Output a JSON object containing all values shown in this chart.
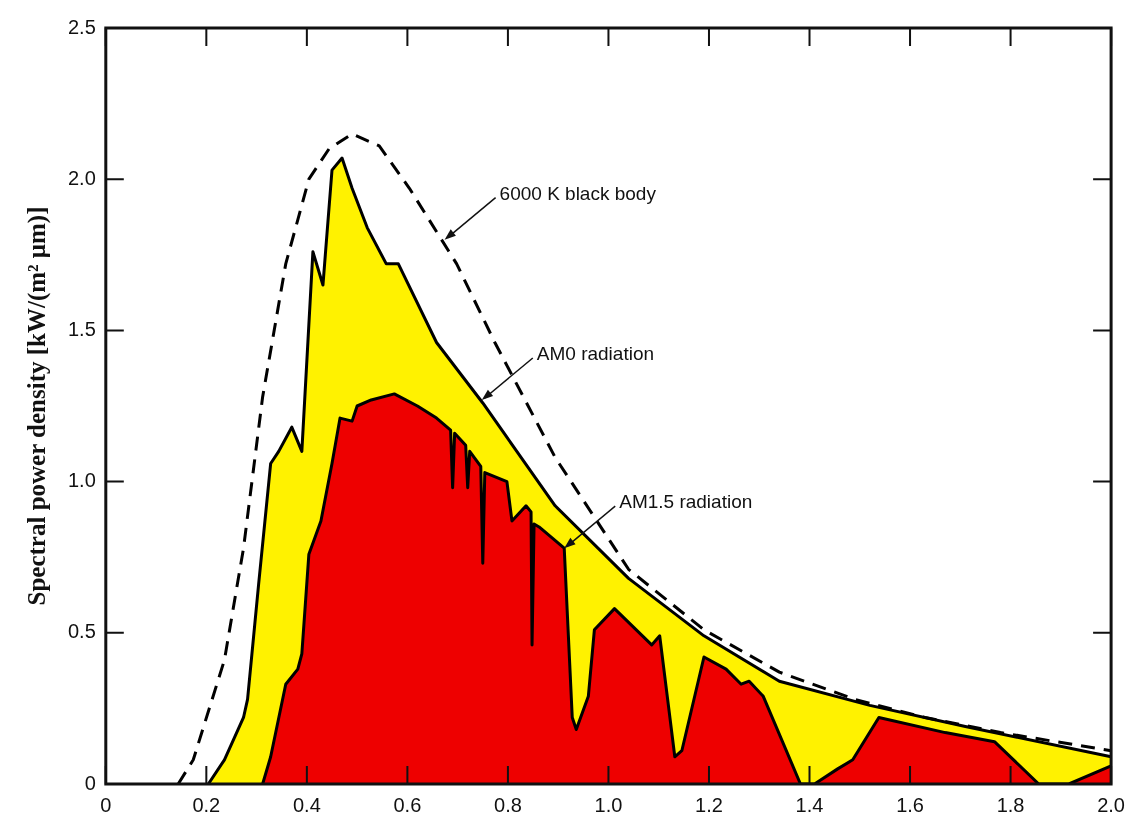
{
  "chart_data": {
    "type": "area",
    "ylabel": "Spectral power density [kW/(m² μm)]",
    "xlim": [
      0,
      2.0
    ],
    "ylim": [
      0,
      2.5
    ],
    "xticks": [
      0,
      0.2,
      0.4,
      0.6,
      0.8,
      {
        "value": 1,
        "label": "1.0"
      },
      1.2,
      1.4,
      1.6,
      1.8,
      {
        "value": 2,
        "label": "2.0"
      }
    ],
    "yticks": [
      0,
      0.5,
      {
        "value": 1,
        "label": "1.0"
      },
      1.5,
      {
        "value": 2,
        "label": "2.0"
      },
      2.5
    ],
    "marker": "none",
    "series": [
      {
        "color": "#fff200",
        "x": [
          0.204,
          0.236,
          0.274,
          0.282,
          0.304,
          0.328,
          0.344,
          0.37,
          0.39,
          0.412,
          0.432,
          0.45,
          0.47,
          0.49,
          0.52,
          0.558,
          0.582,
          0.658,
          0.75,
          0.894,
          1.04,
          1.19,
          1.34,
          1.52,
          1.71,
          2.0
        ],
        "values": [
          0,
          0.08,
          0.22,
          0.28,
          0.66,
          1.06,
          1.1,
          1.18,
          1.1,
          1.76,
          1.65,
          2.03,
          2.07,
          1.97,
          1.84,
          1.72,
          1.72,
          1.46,
          1.26,
          0.92,
          0.68,
          0.49,
          0.34,
          0.26,
          0.19,
          0.09
        ]
      },
      {
        "color": "#ee0000",
        "x": [
          0.312,
          0.328,
          0.358,
          0.382,
          0.39,
          0.404,
          0.428,
          0.45,
          0.466,
          0.49,
          0.5,
          0.528,
          0.574,
          0.62,
          0.658,
          0.686,
          0.69,
          0.694,
          0.716,
          0.72,
          0.724,
          0.746,
          0.75,
          0.754,
          0.798,
          0.808,
          0.836,
          0.846,
          0.848,
          0.852,
          0.862,
          0.912,
          0.928,
          0.936,
          0.96,
          0.972,
          1.012,
          1.086,
          1.102,
          1.132,
          1.146,
          1.19,
          1.234,
          1.264,
          1.28,
          1.308,
          1.382,
          1.41,
          1.456,
          1.486,
          1.538,
          1.67,
          1.768,
          1.856,
          1.916,
          2.0
        ],
        "values": [
          0,
          0.09,
          0.33,
          0.38,
          0.43,
          0.76,
          0.87,
          1.06,
          1.21,
          1.2,
          1.25,
          1.27,
          1.29,
          1.25,
          1.21,
          1.17,
          0.98,
          1.16,
          1.12,
          0.98,
          1.1,
          1.05,
          0.73,
          1.03,
          1.0,
          0.87,
          0.92,
          0.9,
          0.46,
          0.86,
          0.85,
          0.78,
          0.22,
          0.18,
          0.29,
          0.51,
          0.58,
          0.46,
          0.49,
          0.09,
          0.11,
          0.42,
          0.38,
          0.33,
          0.34,
          0.29,
          0,
          0,
          0.05,
          0.08,
          0.22,
          0.17,
          0.14,
          0,
          0,
          0.06
        ]
      },
      {
        "type": "line",
        "color": "#000000",
        "line_style": "dashed",
        "x": [
          0.144,
          0.174,
          0.236,
          0.274,
          0.312,
          0.358,
          0.404,
          0.444,
          0.49,
          0.544,
          0.604,
          0.698,
          0.774,
          0.894,
          1.04,
          1.19,
          1.34,
          1.49,
          1.63,
          1.78,
          2.0
        ],
        "values": [
          0,
          0.08,
          0.41,
          0.78,
          1.28,
          1.72,
          2.0,
          2.1,
          2.15,
          2.11,
          1.97,
          1.72,
          1.46,
          1.08,
          0.71,
          0.51,
          0.37,
          0.28,
          0.22,
          0.17,
          0.11
        ]
      }
    ],
    "annotations": [
      {
        "text": "6000 K black body",
        "x": 0.674,
        "y": 1.8
      },
      {
        "text": "AM0 radiation",
        "x": 0.748,
        "y": 1.27
      },
      {
        "text": "AM1.5 radiation",
        "x": 0.912,
        "y": 0.78
      }
    ]
  }
}
